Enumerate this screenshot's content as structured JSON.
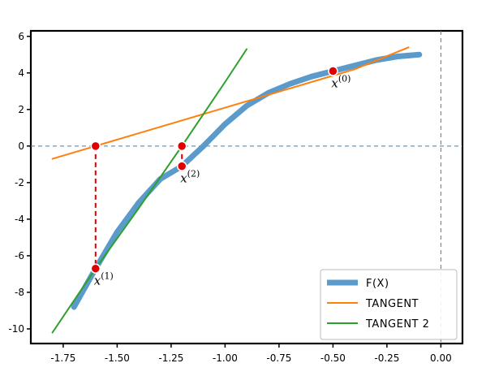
{
  "chart_data": {
    "type": "line",
    "title": "",
    "xlabel": "",
    "ylabel": "",
    "xlim": [
      -1.9,
      0.1
    ],
    "ylim": [
      -10.8,
      6.3
    ],
    "grid": false,
    "legend_position": "lower-right",
    "x_ticks": [
      -1.75,
      -1.5,
      -1.25,
      -1.0,
      -0.75,
      -0.5,
      -0.25,
      0.0
    ],
    "x_tick_labels": [
      "-1.75",
      "-1.50",
      "-1.25",
      "-1.00",
      "-0.75",
      "-0.50",
      "-0.25",
      "0.00"
    ],
    "y_ticks": [
      -10,
      -8,
      -6,
      -4,
      -2,
      0,
      2,
      4,
      6
    ],
    "y_tick_labels": [
      "-10",
      "-8",
      "-6",
      "-4",
      "-2",
      "0",
      "2",
      "4",
      "6"
    ],
    "series": [
      {
        "name": "F(X)",
        "color": "#5B9BCB",
        "x": [
          -1.7,
          -1.6,
          -1.5,
          -1.4,
          -1.3,
          -1.2,
          -1.1,
          -1.0,
          -0.9,
          -0.8,
          -0.7,
          -0.6,
          -0.5,
          -0.4,
          -0.3,
          -0.2,
          -0.1
        ],
        "y": [
          -8.8,
          -6.7,
          -4.7,
          -3.1,
          -1.8,
          -1.1,
          0.0,
          1.2,
          2.2,
          2.9,
          3.4,
          3.8,
          4.1,
          4.4,
          4.7,
          4.9,
          5.0
        ]
      },
      {
        "name": "TANGENT",
        "color": "#FF7F0E",
        "x": [
          -1.8,
          -1.6,
          -1.4,
          -1.2,
          -1.0,
          -0.8,
          -0.6,
          -0.4,
          -0.15
        ],
        "y": [
          -0.7,
          0.0,
          0.7,
          1.4,
          2.1,
          2.8,
          3.5,
          4.2,
          5.4
        ]
      },
      {
        "name": "TANGENT 2",
        "color": "#2CA02C",
        "x": [
          -1.8,
          -1.6,
          -1.4,
          -1.2,
          -1.0,
          -0.9
        ],
        "y": [
          -10.2,
          -6.7,
          -3.4,
          0.0,
          3.5,
          5.3
        ]
      }
    ],
    "points": [
      {
        "label": "X",
        "superscript": "(0)",
        "x": -0.5,
        "y": 4.1
      },
      {
        "label": "X",
        "superscript": "(1)",
        "x": -1.6,
        "y": -6.7
      },
      {
        "label": "X",
        "superscript": "(2)",
        "x": -1.2,
        "y": -1.1
      }
    ],
    "roots": [
      {
        "x": -1.6,
        "y": 0.0
      },
      {
        "x": -1.2,
        "y": 0.0
      }
    ]
  }
}
